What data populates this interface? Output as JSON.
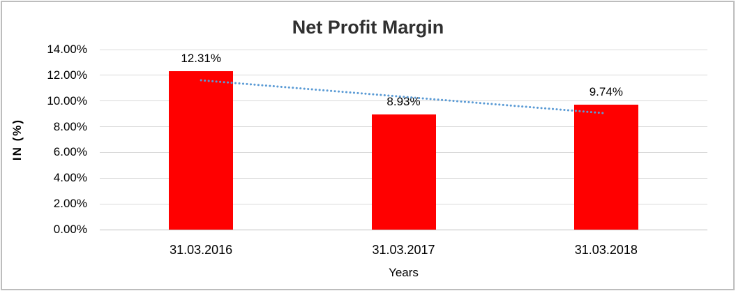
{
  "chart_data": {
    "type": "bar",
    "title": "Net Profit Margin",
    "categories": [
      "31.03.2016",
      "31.03.2017",
      "31.03.2018"
    ],
    "values": [
      12.31,
      8.93,
      9.74
    ],
    "data_labels": [
      "12.31%",
      "8.93%",
      "9.74%"
    ],
    "xlabel": "Years",
    "ylabel": "IN (%)",
    "ylim": [
      0,
      14
    ],
    "ytick_labels": [
      "14.00%",
      "12.00%",
      "10.00%",
      "8.00%",
      "6.00%",
      "4.00%",
      "2.00%",
      "0.00%"
    ],
    "grid": true,
    "legend": "none",
    "trendline": {
      "shape": "linear",
      "style": "dotted",
      "start_value": 11.61,
      "end_value": 9.04
    },
    "colors": {
      "bar": "#FF0000",
      "trendline": "#5B9BD5",
      "gridline": "#D9D9D9",
      "axis_line": "#BFBFBF",
      "title_text": "#303030",
      "label_text": "#000000"
    }
  }
}
